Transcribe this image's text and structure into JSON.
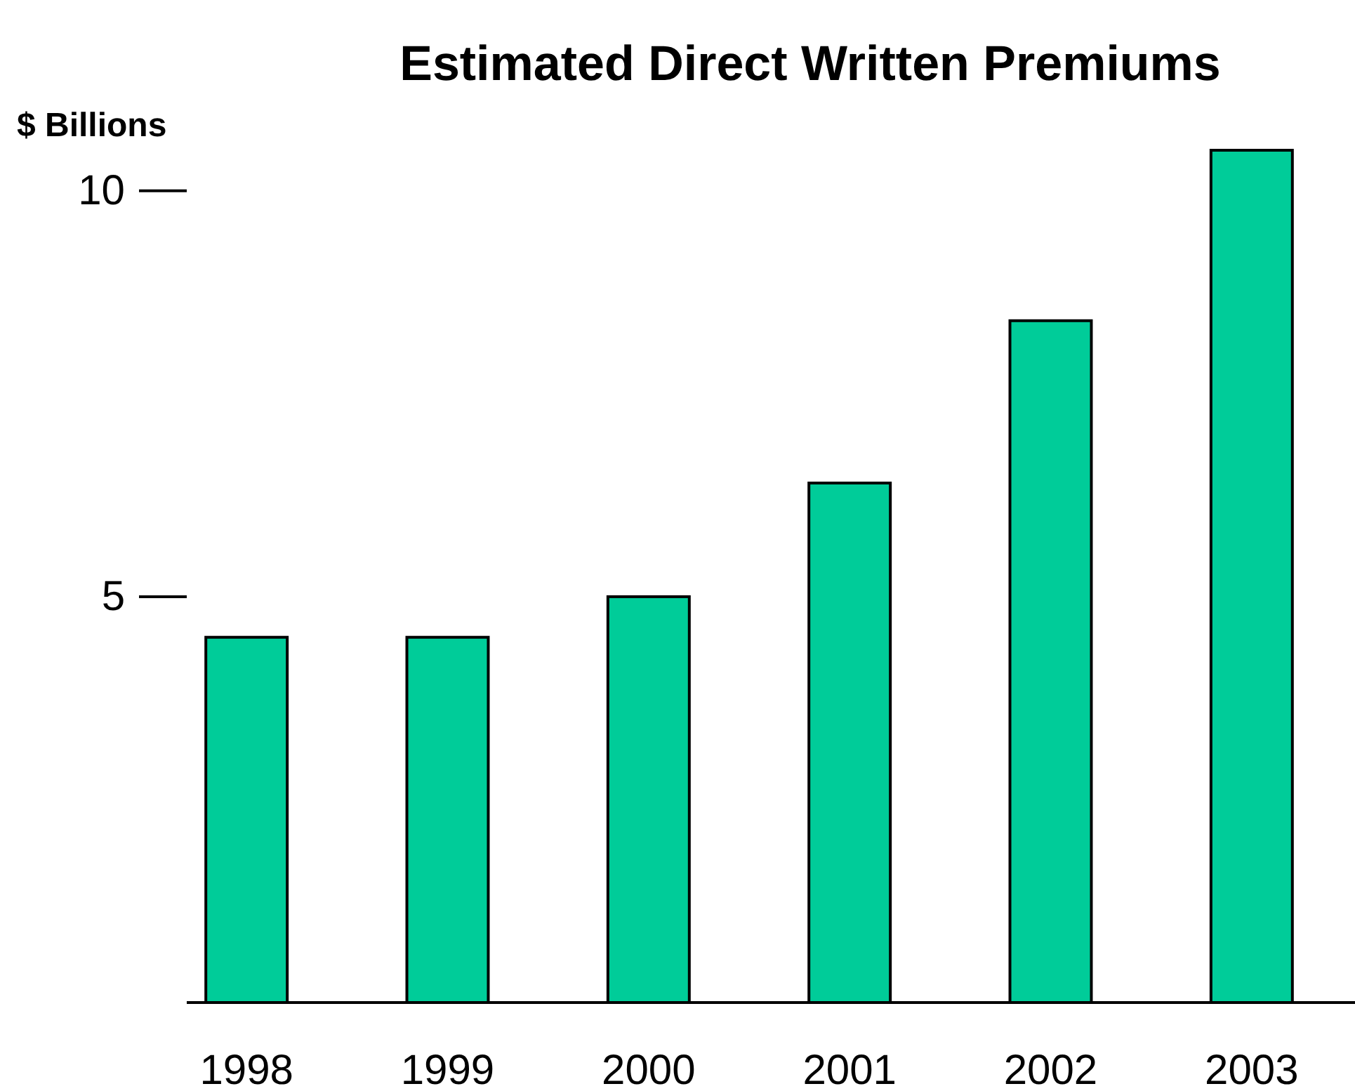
{
  "chart_data": {
    "type": "bar",
    "title": "Estimated Direct Written Premiums",
    "ylabel": "$ Billions",
    "categories": [
      "1998",
      "1999",
      "2000",
      "2001",
      "2002",
      "2003"
    ],
    "values": [
      4.5,
      4.5,
      5.0,
      6.4,
      8.4,
      10.5
    ],
    "color": "#00cc99",
    "ylim": [
      0,
      10.5
    ],
    "yticks": [
      5,
      10
    ]
  }
}
